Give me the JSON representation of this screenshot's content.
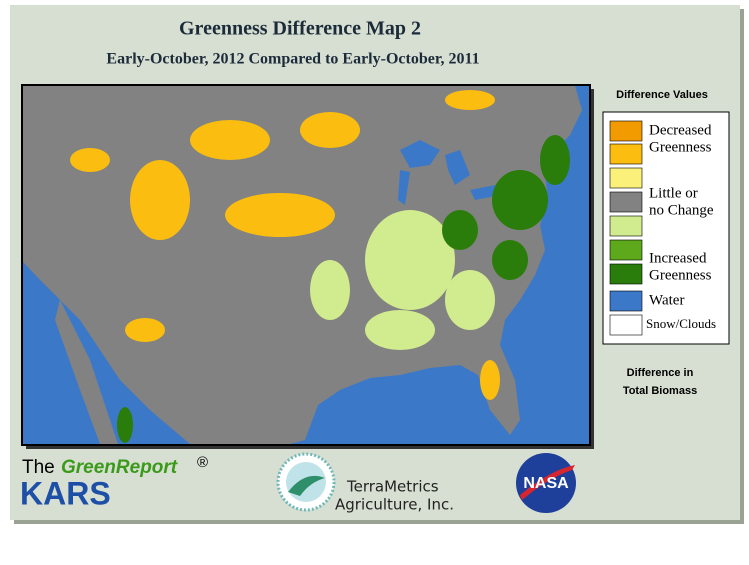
{
  "header": {
    "title": "Greenness Difference Map 2",
    "subtitle": "Early-October, 2012 Compared to Early-October, 2011"
  },
  "legend": {
    "title": "Difference Values",
    "swatches": [
      "#f29b00",
      "#fbbd10",
      "#faf07a",
      "#828282",
      "#d0ec8e",
      "#5ea81c",
      "#2a7d0a",
      "#3c78c8",
      "#ffffff"
    ],
    "labels": [
      "Decreased",
      "Greenness",
      "Little or",
      "no Change",
      "Increased",
      "Greenness",
      "Water",
      "Snow/Clouds"
    ]
  },
  "caption": [
    "Difference in",
    "Total Biomass"
  ],
  "logos": {
    "greenreport": {
      "prefix": "The",
      "name": "GreenReport",
      "mark": "®",
      "org": "KARS"
    },
    "terrametrics": [
      "TerraMetrics",
      "Agriculture, Inc."
    ],
    "nasa": "NASA"
  }
}
